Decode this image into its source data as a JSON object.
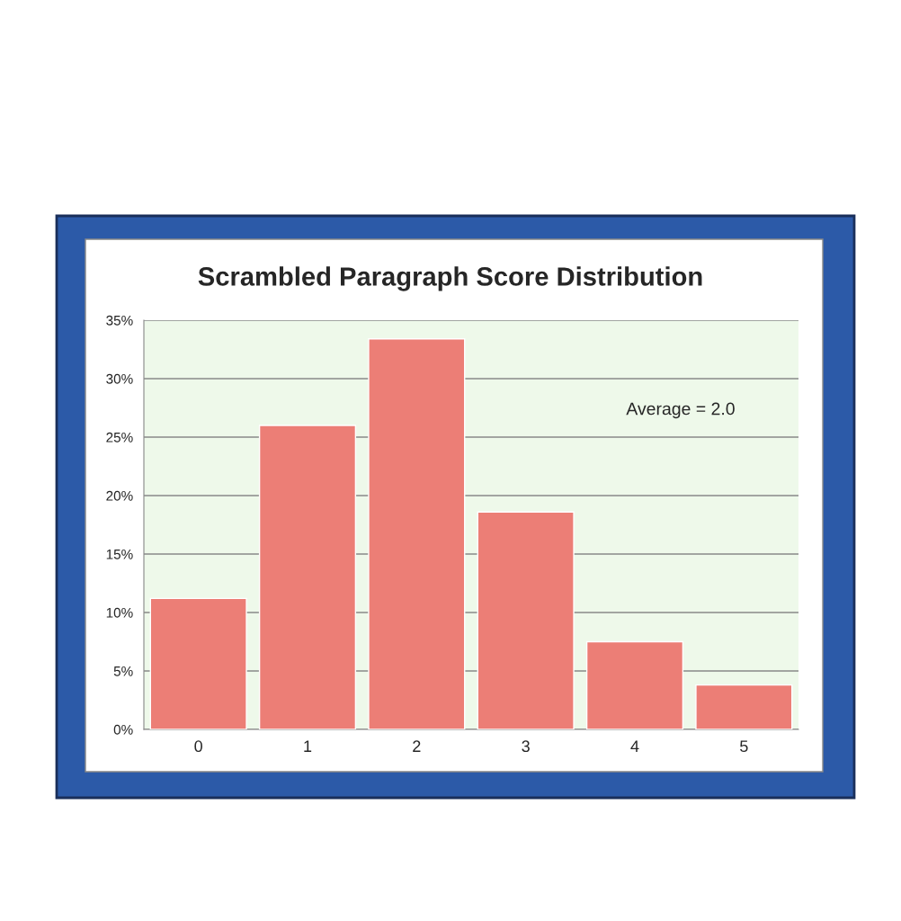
{
  "chart_data": {
    "type": "bar",
    "title": "Scrambled Paragraph Score Distribution",
    "categories": [
      "0",
      "1",
      "2",
      "3",
      "4",
      "5"
    ],
    "values": [
      11.2,
      26.0,
      33.4,
      18.6,
      7.5,
      3.8
    ],
    "color": "#ec7e76",
    "ylim": [
      0,
      35
    ],
    "yticks": [
      {
        "value": 0,
        "label": "0%"
      },
      {
        "value": 5,
        "label": "5%"
      },
      {
        "value": 10,
        "label": "10%"
      },
      {
        "value": 15,
        "label": "15%"
      },
      {
        "value": 20,
        "label": "20%"
      },
      {
        "value": 25,
        "label": "25%"
      },
      {
        "value": 30,
        "label": "30%"
      },
      {
        "value": 35,
        "label": "35%"
      }
    ],
    "grid": "y",
    "annotations": [
      "Average = 2.0"
    ]
  }
}
